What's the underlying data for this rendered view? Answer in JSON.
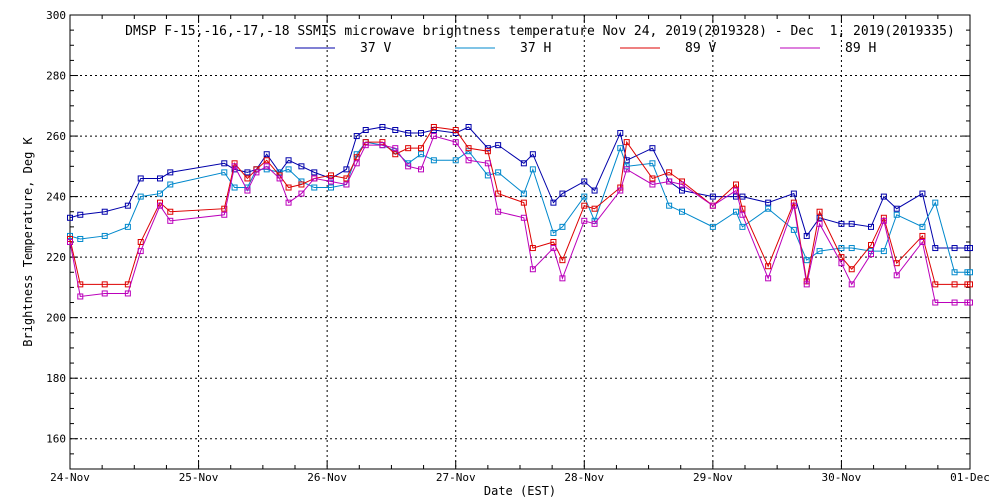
{
  "chart_data": {
    "type": "line",
    "title": "DMSP F-15,-16,-17,-18 SSMIS microwave brightness temperature Nov 24, 2019(2019328) - Dec  1, 2019(2019335)",
    "xlabel": "Date (EST)",
    "ylabel": "Brightness Temperature, Deg K",
    "xlim": [
      0,
      7
    ],
    "ylim": [
      150,
      300
    ],
    "x_tick_values": [
      0,
      1,
      2,
      3,
      4,
      5,
      6,
      7
    ],
    "x_tick_labels": [
      "24-Nov",
      "25-Nov",
      "26-Nov",
      "27-Nov",
      "28-Nov",
      "29-Nov",
      "30-Nov",
      "01-Dec"
    ],
    "y_tick_values": [
      160,
      180,
      200,
      220,
      240,
      260,
      280,
      300
    ],
    "y_tick_labels": [
      "160",
      "180",
      "200",
      "220",
      "240",
      "260",
      "280",
      "300"
    ],
    "grid": true,
    "legend_position": "top-center",
    "x": [
      0.0,
      0.08,
      0.27,
      0.45,
      0.55,
      0.7,
      0.78,
      1.2,
      1.28,
      1.38,
      1.45,
      1.53,
      1.63,
      1.7,
      1.8,
      1.9,
      2.03,
      2.15,
      2.23,
      2.3,
      2.43,
      2.53,
      2.63,
      2.73,
      2.83,
      3.0,
      3.1,
      3.25,
      3.33,
      3.53,
      3.6,
      3.76,
      3.83,
      4.0,
      4.08,
      4.28,
      4.33,
      4.53,
      4.66,
      4.76,
      5.0,
      5.18,
      5.23,
      5.43,
      5.63,
      5.73,
      5.83,
      6.0,
      6.08,
      6.23,
      6.33,
      6.43,
      6.63,
      6.73,
      6.88,
      6.98,
      7.0
    ],
    "series": [
      {
        "name": "37 V",
        "color": "#0000aa",
        "values": [
          233,
          234,
          235,
          237,
          246,
          246,
          248,
          251,
          249,
          248,
          249,
          254,
          248,
          252,
          250,
          248,
          246,
          249,
          260,
          262,
          263,
          262,
          261,
          261,
          262,
          261,
          263,
          256,
          257,
          251,
          254,
          238,
          241,
          245,
          242,
          261,
          252,
          256,
          245,
          242,
          240,
          240,
          240,
          238,
          241,
          227,
          233,
          231,
          231,
          230,
          240,
          236,
          241,
          223,
          223,
          223,
          223
        ]
      },
      {
        "name": "37 H",
        "color": "#0088cc",
        "values": [
          227,
          226,
          227,
          230,
          240,
          241,
          244,
          248,
          243,
          243,
          249,
          249,
          248,
          249,
          245,
          243,
          243,
          244,
          254,
          258,
          257,
          255,
          251,
          254,
          252,
          252,
          255,
          247,
          248,
          241,
          249,
          228,
          230,
          240,
          232,
          256,
          250,
          251,
          237,
          235,
          230,
          235,
          230,
          236,
          229,
          219,
          222,
          223,
          223,
          222,
          222,
          234,
          230,
          238,
          215,
          215,
          215
        ]
      },
      {
        "name": "89 V",
        "color": "#dd0000",
        "values": [
          226,
          211,
          211,
          211,
          225,
          238,
          235,
          236,
          251,
          246,
          249,
          252,
          247,
          243,
          244,
          246,
          247,
          246,
          253,
          258,
          258,
          254,
          256,
          256,
          263,
          262,
          256,
          255,
          241,
          238,
          223,
          225,
          219,
          237,
          236,
          243,
          258,
          246,
          248,
          245,
          237,
          244,
          236,
          217,
          238,
          212,
          235,
          220,
          216,
          224,
          233,
          218,
          227,
          211,
          211,
          211,
          211
        ]
      },
      {
        "name": "89 H",
        "color": "#bb00bb",
        "values": [
          225,
          207,
          208,
          208,
          222,
          237,
          232,
          234,
          250,
          242,
          248,
          250,
          246,
          238,
          241,
          246,
          245,
          244,
          251,
          257,
          257,
          256,
          250,
          249,
          260,
          258,
          252,
          251,
          235,
          233,
          216,
          223,
          213,
          232,
          231,
          242,
          249,
          244,
          245,
          244,
          237,
          242,
          234,
          213,
          237,
          211,
          231,
          218,
          211,
          221,
          232,
          214,
          225,
          205,
          205,
          205,
          205
        ]
      }
    ]
  }
}
